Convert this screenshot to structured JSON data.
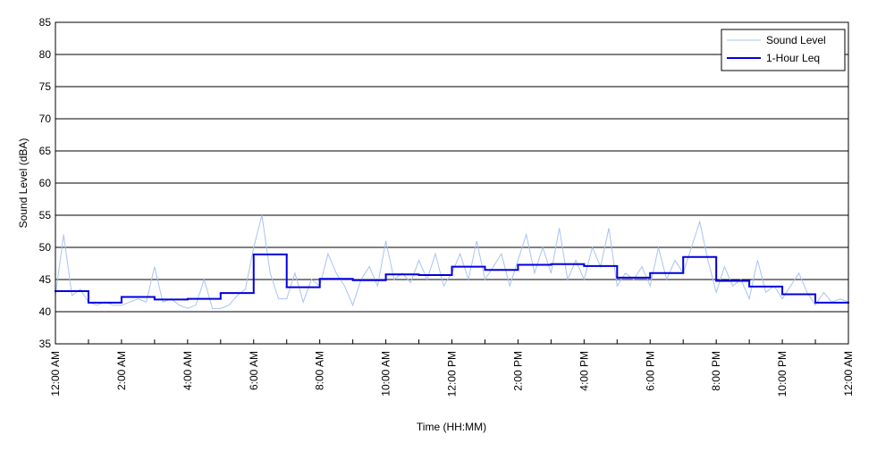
{
  "chart_data": {
    "type": "line",
    "xlabel": "Time (HH:MM)",
    "ylabel": "Sound Level (dBA)",
    "xlim": [
      0,
      24
    ],
    "ylim": [
      35,
      85
    ],
    "xticks": [
      {
        "value": 0,
        "label": "12:00 AM"
      },
      {
        "value": 2,
        "label": "2:00 AM"
      },
      {
        "value": 4,
        "label": "4:00 AM"
      },
      {
        "value": 6,
        "label": "6:00 AM"
      },
      {
        "value": 8,
        "label": "8:00 AM"
      },
      {
        "value": 10,
        "label": "10:00 AM"
      },
      {
        "value": 12,
        "label": "12:00 PM"
      },
      {
        "value": 14,
        "label": "2:00 PM"
      },
      {
        "value": 16,
        "label": "4:00 PM"
      },
      {
        "value": 18,
        "label": "6:00 PM"
      },
      {
        "value": 20,
        "label": "8:00 PM"
      },
      {
        "value": 22,
        "label": "10:00 PM"
      },
      {
        "value": 24,
        "label": "12:00 AM"
      }
    ],
    "xminorticks": [
      1,
      3,
      5,
      7,
      9,
      11,
      13,
      15,
      17,
      19,
      21,
      23
    ],
    "yticks": [
      35,
      40,
      45,
      50,
      55,
      60,
      65,
      70,
      75,
      80,
      85
    ],
    "grid": true,
    "legend": "upper right",
    "series": [
      {
        "name": "Sound Level",
        "color": "#a9c3f2",
        "style": "line",
        "x": [
          0,
          0.25,
          0.5,
          0.75,
          1,
          1.25,
          1.5,
          1.75,
          2,
          2.25,
          2.5,
          2.75,
          3,
          3.25,
          3.5,
          3.75,
          4,
          4.25,
          4.5,
          4.75,
          5,
          5.25,
          5.5,
          5.75,
          6,
          6.25,
          6.5,
          6.75,
          7,
          7.25,
          7.5,
          7.75,
          8,
          8.25,
          8.5,
          8.75,
          9,
          9.25,
          9.5,
          9.75,
          10,
          10.25,
          10.5,
          10.75,
          11,
          11.25,
          11.5,
          11.75,
          12,
          12.25,
          12.5,
          12.75,
          13,
          13.25,
          13.5,
          13.75,
          14,
          14.25,
          14.5,
          14.75,
          15,
          15.25,
          15.5,
          15.75,
          16,
          16.25,
          16.5,
          16.75,
          17,
          17.25,
          17.5,
          17.75,
          18,
          18.25,
          18.5,
          18.75,
          19,
          19.25,
          19.5,
          19.75,
          20,
          20.25,
          20.5,
          20.75,
          21,
          21.25,
          21.5,
          21.75,
          22,
          22.25,
          22.5,
          22.75,
          23,
          23.25,
          23.5,
          23.75,
          24
        ],
        "values": [
          42.5,
          52,
          42.5,
          43.5,
          41.5,
          41,
          41.5,
          41,
          41,
          41.5,
          42,
          41.5,
          47,
          41.5,
          42,
          41,
          40.5,
          41,
          45,
          40.5,
          40.5,
          41,
          42.5,
          43.5,
          50,
          55,
          46,
          42,
          42,
          46,
          41.5,
          45,
          44,
          49,
          46,
          44,
          41,
          45,
          47,
          44,
          51,
          45,
          46,
          44.5,
          48,
          45,
          49,
          44,
          46,
          49,
          45,
          51,
          45,
          47,
          49,
          44,
          48,
          52,
          46,
          50,
          46,
          53,
          45,
          48,
          45,
          50,
          47,
          53,
          44,
          46,
          45,
          47,
          44,
          50,
          45,
          48,
          46,
          50,
          54,
          48,
          43,
          47,
          44,
          45,
          42,
          48,
          43,
          44,
          42,
          44,
          46,
          43,
          41,
          43,
          41.5,
          42,
          41.5
        ]
      },
      {
        "name": "1-Hour Leq",
        "color": "#0000dd",
        "style": "steps-post",
        "x": [
          0,
          1,
          2,
          3,
          4,
          5,
          6,
          7,
          8,
          9,
          10,
          11,
          12,
          13,
          14,
          15,
          16,
          17,
          18,
          19,
          20,
          21,
          22,
          23
        ],
        "values": [
          43.2,
          41.4,
          42.3,
          41.9,
          42.0,
          42.9,
          48.9,
          43.8,
          45.1,
          44.9,
          45.8,
          45.7,
          47.0,
          46.5,
          47.3,
          47.4,
          47.1,
          45.3,
          46.0,
          48.5,
          44.8,
          43.9,
          42.7,
          41.4
        ]
      }
    ]
  }
}
